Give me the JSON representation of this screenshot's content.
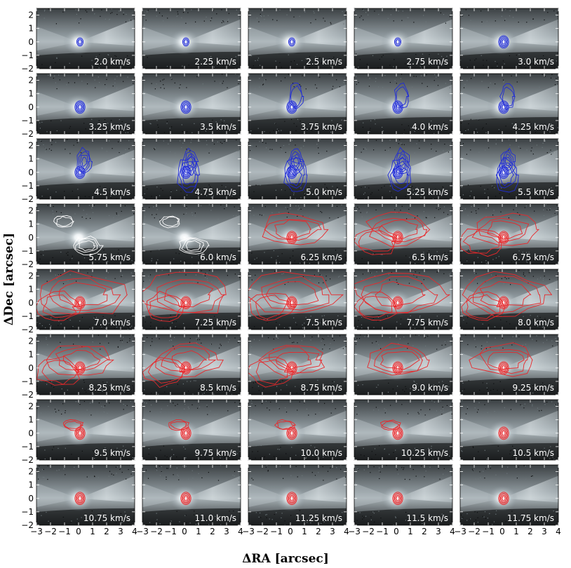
{
  "chart_data": {
    "type": "channel-map grid",
    "rows": 8,
    "cols": 5,
    "xlabel": "ΔRA [arcsec]",
    "ylabel": "ΔDec [arcsec]",
    "xlim": [
      -3,
      4
    ],
    "ylim": [
      -2,
      2.5
    ],
    "xticks": [
      "−3",
      "−2",
      "−1",
      "0",
      "1",
      "2",
      "3",
      "4"
    ],
    "yticks": [
      "−2",
      "−1",
      "0",
      "1",
      "2"
    ],
    "velocity_unit": "km/s",
    "panels": [
      {
        "velocity": "2.0 km/s",
        "contour": "blue"
      },
      {
        "velocity": "2.25 km/s",
        "contour": "blue"
      },
      {
        "velocity": "2.5 km/s",
        "contour": "blue"
      },
      {
        "velocity": "2.75 km/s",
        "contour": "blue"
      },
      {
        "velocity": "3.0 km/s",
        "contour": "blue"
      },
      {
        "velocity": "3.25 km/s",
        "contour": "blue"
      },
      {
        "velocity": "3.5 km/s",
        "contour": "blue"
      },
      {
        "velocity": "3.75 km/s",
        "contour": "blue"
      },
      {
        "velocity": "4.0 km/s",
        "contour": "blue"
      },
      {
        "velocity": "4.25 km/s",
        "contour": "blue"
      },
      {
        "velocity": "4.5 km/s",
        "contour": "blue"
      },
      {
        "velocity": "4.75 km/s",
        "contour": "blue"
      },
      {
        "velocity": "5.0 km/s",
        "contour": "blue"
      },
      {
        "velocity": "5.25 km/s",
        "contour": "blue"
      },
      {
        "velocity": "5.5 km/s",
        "contour": "blue"
      },
      {
        "velocity": "5.75 km/s",
        "contour": "white"
      },
      {
        "velocity": "6.0 km/s",
        "contour": "white"
      },
      {
        "velocity": "6.25 km/s",
        "contour": "red"
      },
      {
        "velocity": "6.5 km/s",
        "contour": "red"
      },
      {
        "velocity": "6.75 km/s",
        "contour": "red"
      },
      {
        "velocity": "7.0 km/s",
        "contour": "red"
      },
      {
        "velocity": "7.25 km/s",
        "contour": "red"
      },
      {
        "velocity": "7.5 km/s",
        "contour": "red"
      },
      {
        "velocity": "7.75 km/s",
        "contour": "red"
      },
      {
        "velocity": "8.0 km/s",
        "contour": "red"
      },
      {
        "velocity": "8.25 km/s",
        "contour": "red"
      },
      {
        "velocity": "8.5 km/s",
        "contour": "red"
      },
      {
        "velocity": "8.75 km/s",
        "contour": "red"
      },
      {
        "velocity": "9.0 km/s",
        "contour": "red"
      },
      {
        "velocity": "9.25 km/s",
        "contour": "red"
      },
      {
        "velocity": "9.5 km/s",
        "contour": "red"
      },
      {
        "velocity": "9.75 km/s",
        "contour": "red"
      },
      {
        "velocity": "10.0 km/s",
        "contour": "red"
      },
      {
        "velocity": "10.25 km/s",
        "contour": "red"
      },
      {
        "velocity": "10.5 km/s",
        "contour": "red"
      },
      {
        "velocity": "10.75 km/s",
        "contour": "red"
      },
      {
        "velocity": "11.0 km/s",
        "contour": "red"
      },
      {
        "velocity": "11.25 km/s",
        "contour": "red"
      },
      {
        "velocity": "11.5 km/s",
        "contour": "red"
      },
      {
        "velocity": "11.75 km/s",
        "contour": "red"
      }
    ],
    "colors": {
      "blue": "#1f2bd6",
      "red": "#e8282b",
      "white": "#ffffff",
      "background_dark": "#1b1d1f",
      "background_mid": "#7f8a90",
      "background_light": "#d9e2e6"
    }
  }
}
